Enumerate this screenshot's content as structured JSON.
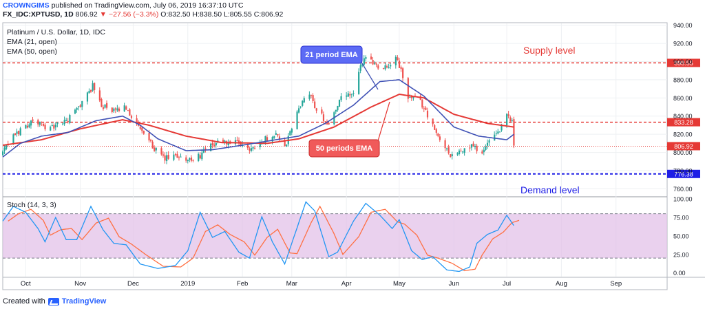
{
  "header": {
    "author": "CROWNGIMS",
    "published": "published on TradingView.com, July 06, 2019 16:37:10 UTC",
    "symbol": "FX_IDC:XPTUSD, 1D",
    "last": "806.92",
    "change": "−27.56 (−3.3%)",
    "ohlc": "O:832.50 H:838.50 L:805.55 C:806.92"
  },
  "legend": {
    "title": "Platinum / U.S. Dollar, 1D, IDC",
    "ema21": "EMA (21, open)",
    "ema50": "EMA (50, open)",
    "stoch": "Stoch (14, 3, 3)"
  },
  "annotations": {
    "supply": "Supply level",
    "demand": "Demand level",
    "ema21_callout": "21 period EMA",
    "ema50_callout": "50 periods EMA"
  },
  "footer": {
    "created_with": "Created with",
    "brand": "TradingView"
  },
  "colors": {
    "up": "#26a69a",
    "down": "#ef5350",
    "ema21": "#3f51b5",
    "ema50": "#e53935",
    "supply": "#e53935",
    "demand": "#1e1ee6",
    "stoch_k": "#2196f3",
    "stoch_d": "#ff7043",
    "stoch_band": "#e1bee7"
  },
  "chart_data": {
    "type": "candlestick",
    "y_ticks": [
      760,
      780,
      800,
      820,
      840,
      860,
      880,
      900,
      920,
      940
    ],
    "y_tick_labels": [
      "760.00",
      "780.00",
      "800.00",
      "820.00",
      "840.00",
      "860.00",
      "880.00",
      "900.00",
      "920.00",
      "940.00"
    ],
    "ylim": [
      752,
      942
    ],
    "x_labels": [
      {
        "label": "Oct",
        "date": "2018-10-01"
      },
      {
        "label": "Nov",
        "date": "2018-11-01"
      },
      {
        "label": "Dec",
        "date": "2018-12-01"
      },
      {
        "label": "2019",
        "date": "2019-01-01"
      },
      {
        "label": "Feb",
        "date": "2019-02-01"
      },
      {
        "label": "Mar",
        "date": "2019-03-01"
      },
      {
        "label": "Apr",
        "date": "2019-04-01"
      },
      {
        "label": "May",
        "date": "2019-05-01"
      },
      {
        "label": "Jun",
        "date": "2019-06-01"
      },
      {
        "label": "Jul",
        "date": "2019-07-01"
      },
      {
        "label": "Aug",
        "date": "2019-08-01"
      },
      {
        "label": "Sep",
        "date": "2019-09-01"
      }
    ],
    "xlim": [
      "2018-09-18",
      "2019-09-30"
    ],
    "levels": [
      {
        "name": "supply",
        "value": 898.55,
        "label": "898.55"
      },
      {
        "name": "resistance",
        "value": 833.28,
        "label": "833.28"
      },
      {
        "name": "last",
        "value": 806.92,
        "label": "806.92"
      },
      {
        "name": "demand",
        "value": 776.38,
        "label": "776.38"
      }
    ],
    "price_waypoints": [
      [
        "2018-09-18",
        800
      ],
      [
        "2018-09-25",
        820
      ],
      [
        "2018-10-05",
        835
      ],
      [
        "2018-10-15",
        826
      ],
      [
        "2018-10-25",
        836
      ],
      [
        "2018-11-02",
        855
      ],
      [
        "2018-11-08",
        873
      ],
      [
        "2018-11-13",
        852
      ],
      [
        "2018-11-20",
        845
      ],
      [
        "2018-11-27",
        850
      ],
      [
        "2018-12-03",
        830
      ],
      [
        "2018-12-10",
        812
      ],
      [
        "2018-12-18",
        793
      ],
      [
        "2018-12-28",
        796
      ],
      [
        "2019-01-04",
        790
      ],
      [
        "2019-01-11",
        802
      ],
      [
        "2019-01-18",
        812
      ],
      [
        "2019-01-28",
        810
      ],
      [
        "2019-02-05",
        804
      ],
      [
        "2019-02-12",
        812
      ],
      [
        "2019-02-20",
        822
      ],
      [
        "2019-02-25",
        805
      ],
      [
        "2019-03-01",
        827
      ],
      [
        "2019-03-06",
        853
      ],
      [
        "2019-03-11",
        864
      ],
      [
        "2019-03-15",
        848
      ],
      [
        "2019-03-22",
        830
      ],
      [
        "2019-03-28",
        858
      ],
      [
        "2019-04-05",
        865
      ],
      [
        "2019-04-10",
        900
      ],
      [
        "2019-04-12",
        906
      ],
      [
        "2019-04-18",
        896
      ],
      [
        "2019-04-24",
        895
      ],
      [
        "2019-04-30",
        903
      ],
      [
        "2019-05-06",
        860
      ],
      [
        "2019-05-12",
        858
      ],
      [
        "2019-05-16",
        846
      ],
      [
        "2019-05-22",
        820
      ],
      [
        "2019-05-30",
        798
      ],
      [
        "2019-06-05",
        800
      ],
      [
        "2019-06-11",
        808
      ],
      [
        "2019-06-17",
        800
      ],
      [
        "2019-06-21",
        812
      ],
      [
        "2019-06-25",
        818
      ],
      [
        "2019-07-01",
        840
      ],
      [
        "2019-07-04",
        834
      ],
      [
        "2019-07-05",
        807
      ]
    ],
    "ema21": [
      [
        "2018-09-18",
        795
      ],
      [
        "2018-09-28",
        810
      ],
      [
        "2018-10-10",
        818
      ],
      [
        "2018-10-25",
        822
      ],
      [
        "2018-11-10",
        835
      ],
      [
        "2018-11-25",
        840
      ],
      [
        "2018-12-05",
        830
      ],
      [
        "2018-12-15",
        815
      ],
      [
        "2018-12-31",
        802
      ],
      [
        "2019-01-15",
        803
      ],
      [
        "2019-02-01",
        808
      ],
      [
        "2019-02-20",
        814
      ],
      [
        "2019-03-05",
        818
      ],
      [
        "2019-03-20",
        832
      ],
      [
        "2019-04-05",
        852
      ],
      [
        "2019-04-20",
        878
      ],
      [
        "2019-05-01",
        880
      ],
      [
        "2019-05-15",
        862
      ],
      [
        "2019-06-01",
        828
      ],
      [
        "2019-06-15",
        818
      ],
      [
        "2019-07-01",
        814
      ],
      [
        "2019-07-05",
        820
      ]
    ],
    "ema50": [
      [
        "2018-09-18",
        808
      ],
      [
        "2018-10-10",
        814
      ],
      [
        "2018-11-01",
        826
      ],
      [
        "2018-11-25",
        836
      ],
      [
        "2018-12-10",
        830
      ],
      [
        "2018-12-31",
        818
      ],
      [
        "2019-01-20",
        811
      ],
      [
        "2019-02-15",
        810
      ],
      [
        "2019-03-05",
        815
      ],
      [
        "2019-03-25",
        828
      ],
      [
        "2019-04-15",
        850
      ],
      [
        "2019-05-01",
        864
      ],
      [
        "2019-05-15",
        860
      ],
      [
        "2019-06-01",
        842
      ],
      [
        "2019-06-20",
        832
      ],
      [
        "2019-07-05",
        828
      ]
    ],
    "stoch": {
      "range": [
        -5,
        102
      ],
      "ticks": [
        0,
        25,
        50,
        75,
        100
      ],
      "tick_labels": [
        "0.00",
        "25.00",
        "50.00",
        "75.00",
        "100.00"
      ],
      "band": [
        20,
        80
      ],
      "k_waypoints": [
        [
          "2018-09-18",
          70
        ],
        [
          "2018-09-24",
          90
        ],
        [
          "2018-10-01",
          82
        ],
        [
          "2018-10-08",
          60
        ],
        [
          "2018-10-12",
          42
        ],
        [
          "2018-10-18",
          75
        ],
        [
          "2018-10-24",
          45
        ],
        [
          "2018-10-30",
          45
        ],
        [
          "2018-11-07",
          90
        ],
        [
          "2018-11-14",
          58
        ],
        [
          "2018-11-20",
          40
        ],
        [
          "2018-11-27",
          38
        ],
        [
          "2018-12-05",
          12
        ],
        [
          "2018-12-15",
          6
        ],
        [
          "2018-12-25",
          10
        ],
        [
          "2019-01-01",
          30
        ],
        [
          "2019-01-08",
          82
        ],
        [
          "2019-01-15",
          48
        ],
        [
          "2019-01-22",
          56
        ],
        [
          "2019-01-30",
          28
        ],
        [
          "2019-02-05",
          20
        ],
        [
          "2019-02-12",
          76
        ],
        [
          "2019-02-18",
          42
        ],
        [
          "2019-02-25",
          12
        ],
        [
          "2019-03-01",
          40
        ],
        [
          "2019-03-09",
          96
        ],
        [
          "2019-03-14",
          84
        ],
        [
          "2019-03-22",
          22
        ],
        [
          "2019-03-27",
          28
        ],
        [
          "2019-04-05",
          70
        ],
        [
          "2019-04-12",
          94
        ],
        [
          "2019-04-20",
          78
        ],
        [
          "2019-04-27",
          60
        ],
        [
          "2019-05-01",
          72
        ],
        [
          "2019-05-08",
          30
        ],
        [
          "2019-05-14",
          18
        ],
        [
          "2019-05-20",
          22
        ],
        [
          "2019-05-28",
          4
        ],
        [
          "2019-06-04",
          2
        ],
        [
          "2019-06-10",
          8
        ],
        [
          "2019-06-14",
          40
        ],
        [
          "2019-06-20",
          52
        ],
        [
          "2019-06-26",
          58
        ],
        [
          "2019-07-01",
          78
        ],
        [
          "2019-07-05",
          64
        ]
      ]
    }
  }
}
